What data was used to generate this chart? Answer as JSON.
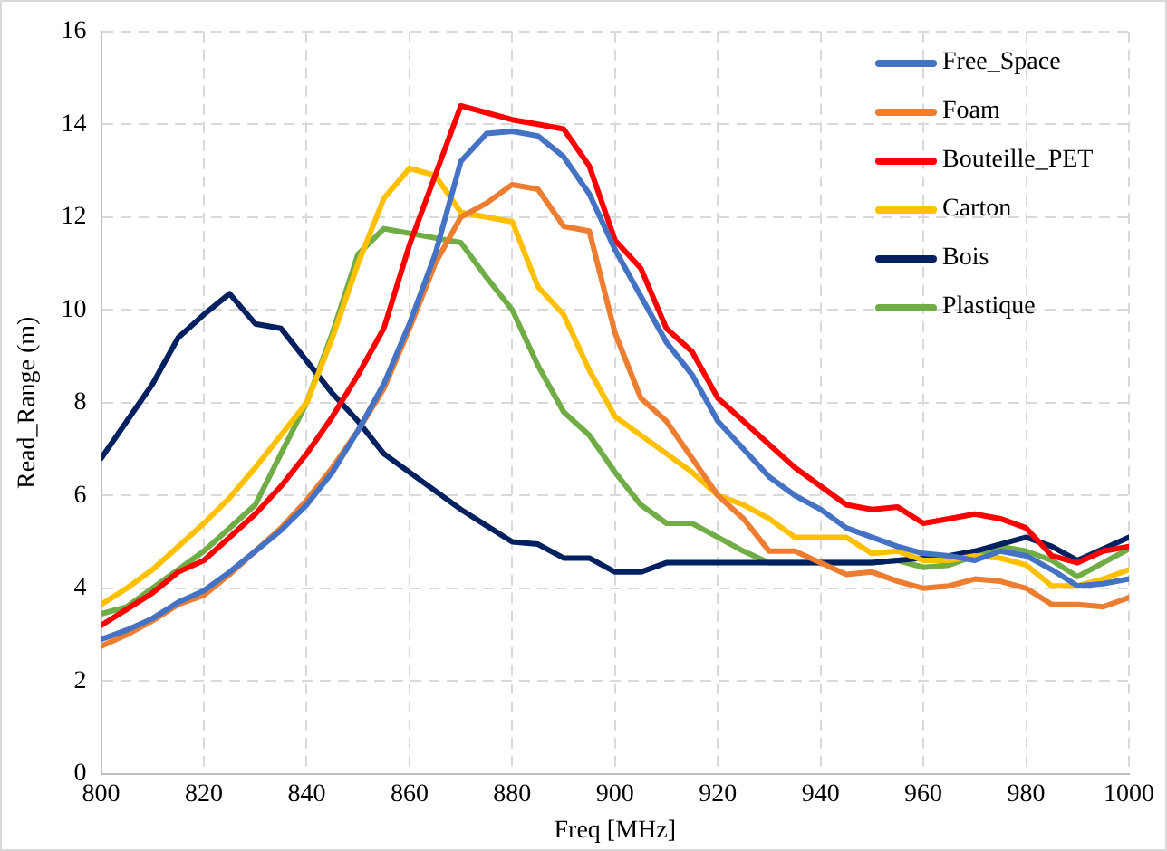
{
  "chart_data": {
    "type": "line",
    "xlabel": "Freq [MHz]",
    "ylabel": "Read_Range (m)",
    "x": [
      800,
      805,
      810,
      815,
      820,
      825,
      830,
      835,
      840,
      845,
      850,
      855,
      860,
      865,
      870,
      875,
      880,
      885,
      890,
      895,
      900,
      905,
      910,
      915,
      920,
      925,
      930,
      935,
      940,
      945,
      950,
      955,
      960,
      965,
      970,
      975,
      980,
      985,
      990,
      995,
      1000
    ],
    "xlim": [
      800,
      1000
    ],
    "xticks": [
      800,
      820,
      840,
      860,
      880,
      900,
      920,
      940,
      960,
      980,
      1000
    ],
    "ylim": [
      0,
      16
    ],
    "yticks": [
      0,
      2,
      4,
      6,
      8,
      10,
      12,
      14,
      16
    ],
    "grid": true,
    "legend": "top right",
    "marker": "none",
    "line_style": "solid",
    "series": [
      {
        "name": "Free_Space",
        "color": "#4472c4",
        "values": [
          2.9,
          3.1,
          3.35,
          3.7,
          3.95,
          4.35,
          4.8,
          5.25,
          5.8,
          6.5,
          7.4,
          8.4,
          9.7,
          11.2,
          13.2,
          13.8,
          13.85,
          13.75,
          13.3,
          12.5,
          11.3,
          10.3,
          9.3,
          8.6,
          7.6,
          7.0,
          6.4,
          6.0,
          5.7,
          5.3,
          5.1,
          4.9,
          4.75,
          4.7,
          4.6,
          4.8,
          4.7,
          4.4,
          4.05,
          4.1,
          4.2
        ]
      },
      {
        "name": "Foam",
        "color": "#ed7d31",
        "values": [
          2.75,
          3.0,
          3.3,
          3.65,
          3.85,
          4.3,
          4.8,
          5.3,
          5.9,
          6.6,
          7.4,
          8.3,
          9.6,
          11.0,
          12.0,
          12.3,
          12.7,
          12.6,
          11.8,
          11.7,
          9.5,
          8.1,
          7.6,
          6.8,
          6.0,
          5.5,
          4.8,
          4.8,
          4.55,
          4.3,
          4.35,
          4.15,
          4.0,
          4.05,
          4.2,
          4.15,
          4.0,
          3.65,
          3.65,
          3.6,
          3.8
        ]
      },
      {
        "name": "Bouteille_PET",
        "color": "#ff0000",
        "values": [
          3.2,
          3.55,
          3.9,
          4.35,
          4.6,
          5.1,
          5.6,
          6.2,
          6.9,
          7.7,
          8.6,
          9.6,
          11.4,
          12.9,
          14.4,
          14.25,
          14.1,
          14.0,
          13.9,
          13.1,
          11.5,
          10.9,
          9.6,
          9.1,
          8.1,
          7.6,
          7.1,
          6.6,
          6.2,
          5.8,
          5.7,
          5.75,
          5.4,
          5.5,
          5.6,
          5.5,
          5.3,
          4.7,
          4.55,
          4.8,
          4.9
        ]
      },
      {
        "name": "Carton",
        "color": "#ffc000",
        "values": [
          3.65,
          4.0,
          4.4,
          4.9,
          5.4,
          5.95,
          6.6,
          7.3,
          8.0,
          9.4,
          11.0,
          12.4,
          13.05,
          12.9,
          12.1,
          12.0,
          11.9,
          10.5,
          9.9,
          8.7,
          7.7,
          7.3,
          6.9,
          6.5,
          6.0,
          5.8,
          5.5,
          5.1,
          5.1,
          5.1,
          4.75,
          4.8,
          4.6,
          4.6,
          4.7,
          4.65,
          4.5,
          4.05,
          4.05,
          4.2,
          4.4
        ]
      },
      {
        "name": "Bois",
        "color": "#002060",
        "values": [
          6.8,
          7.6,
          8.4,
          9.4,
          9.9,
          10.35,
          9.7,
          9.6,
          8.9,
          8.2,
          7.6,
          6.9,
          6.5,
          6.1,
          5.7,
          5.35,
          5.0,
          4.95,
          4.65,
          4.65,
          4.35,
          4.35,
          4.55,
          4.55,
          4.55,
          4.55,
          4.55,
          4.55,
          4.55,
          4.55,
          4.55,
          4.6,
          4.65,
          4.7,
          4.8,
          4.95,
          5.1,
          4.9,
          4.6,
          4.85,
          5.1
        ]
      },
      {
        "name": "Plastique",
        "color": "#70ad47",
        "values": [
          3.45,
          3.6,
          4.0,
          4.4,
          4.8,
          5.3,
          5.8,
          6.9,
          8.0,
          9.5,
          11.2,
          11.75,
          11.65,
          11.55,
          11.45,
          10.7,
          10.0,
          8.8,
          7.8,
          7.3,
          6.5,
          5.8,
          5.4,
          5.4,
          5.1,
          4.8,
          4.55,
          4.55,
          4.55,
          4.55,
          4.55,
          4.6,
          4.45,
          4.5,
          4.7,
          4.9,
          4.8,
          4.6,
          4.25,
          4.55,
          4.85
        ]
      }
    ]
  }
}
